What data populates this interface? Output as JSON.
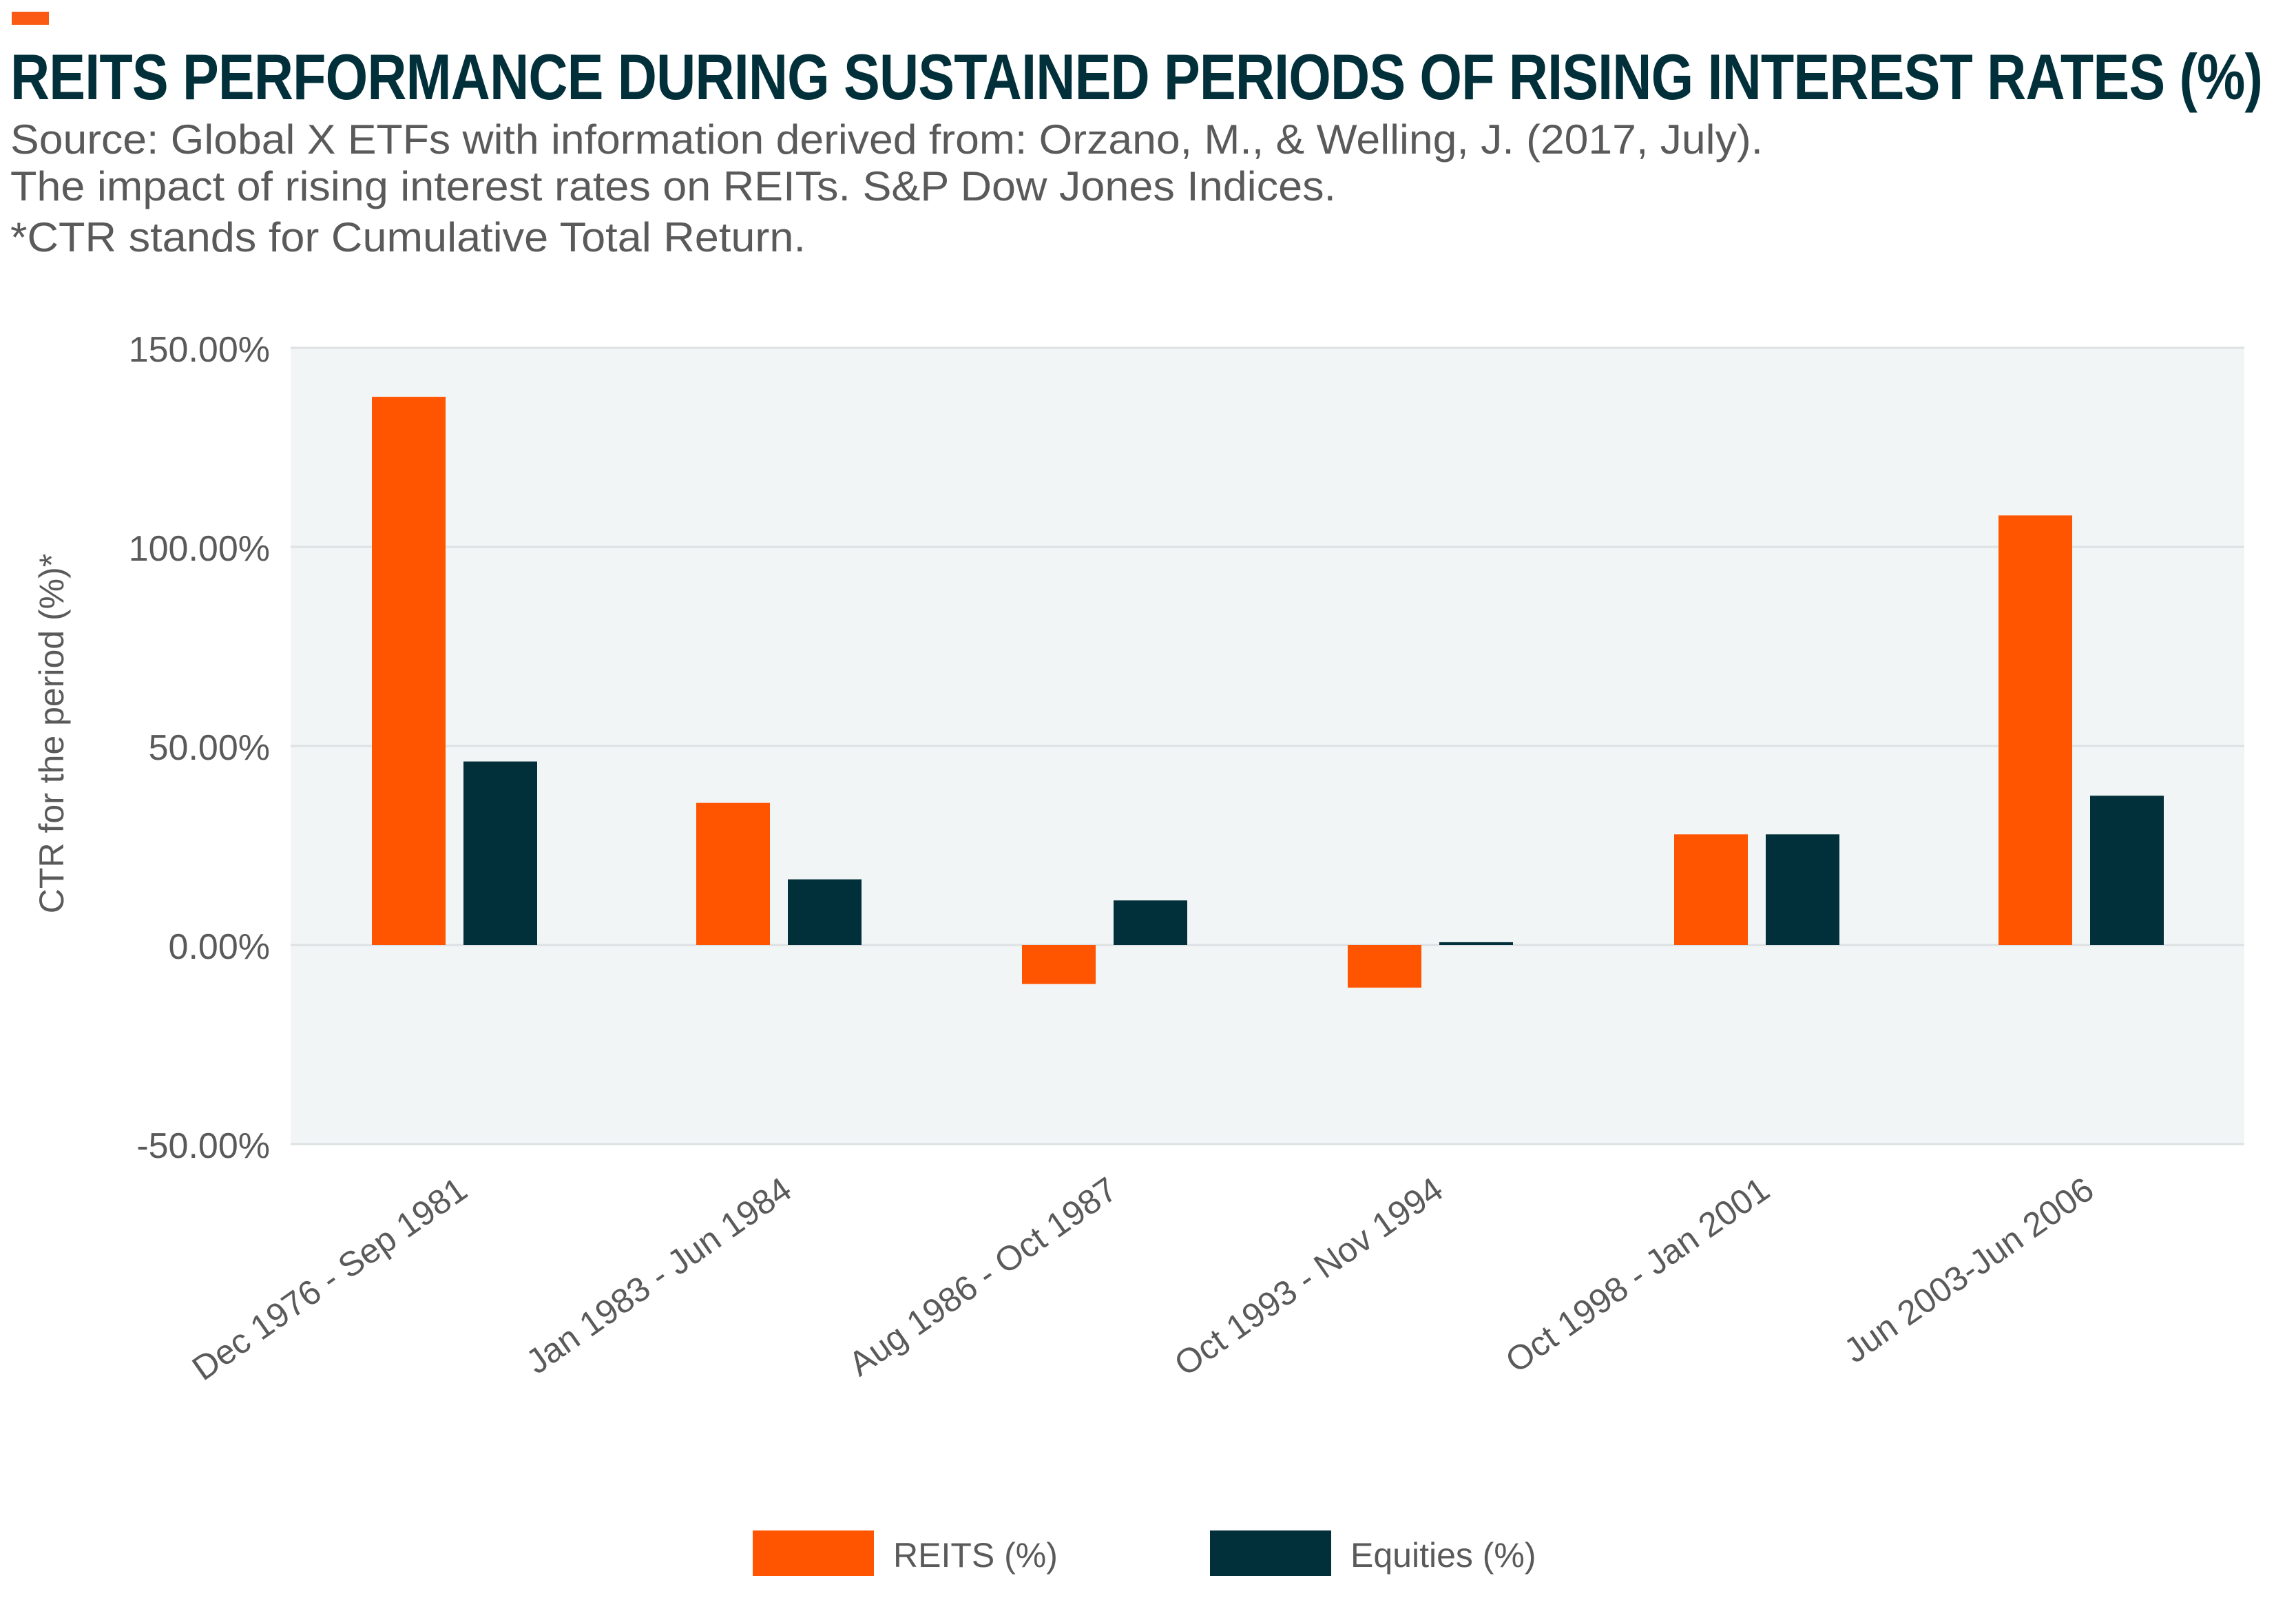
{
  "header": {
    "title": "REITS PERFORMANCE DURING SUSTAINED PERIODS OF RISING INTEREST RATES (%)",
    "subtitle_lines": [
      "Source: Global X ETFs with information derived from: Orzano, M., & Welling, J. (2017, July).",
      "The impact of rising interest rates on REITs. S&P Dow Jones Indices.",
      "*CTR stands for Cumulative Total Return."
    ],
    "accent_color": "#fa5a14"
  },
  "chart_data": {
    "type": "bar",
    "title": "REITS PERFORMANCE DURING SUSTAINED PERIODS OF RISING INTEREST RATES (%)",
    "xlabel": "",
    "ylabel": "CTR for the period (%)*",
    "ylim": [
      -50,
      150
    ],
    "yticks": [
      -50,
      0,
      50,
      100,
      150
    ],
    "ytick_labels": [
      "-50.00%",
      "0.00%",
      "50.00%",
      "100.00%",
      "150.00%"
    ],
    "grid": true,
    "legend_position": "bottom",
    "categories": [
      "Dec 1976 - Sep 1981",
      "Jan 1983 - Jun 1984",
      "Aug 1986 - Oct 1987",
      "Oct 1993 - Nov 1994",
      "Oct 1998 - Jan 2001",
      "Jun 2003-Jun 2006"
    ],
    "series": [
      {
        "name": "REITS (%)",
        "color": "#ff5500",
        "values": [
          137.7,
          35.7,
          -9.8,
          -10.7,
          27.8,
          107.9
        ]
      },
      {
        "name": "Equities (%)",
        "color": "#02303a",
        "values": [
          46.1,
          16.5,
          11.2,
          0.7,
          27.8,
          37.5
        ]
      }
    ],
    "plot_background": "#f2f5f6"
  }
}
